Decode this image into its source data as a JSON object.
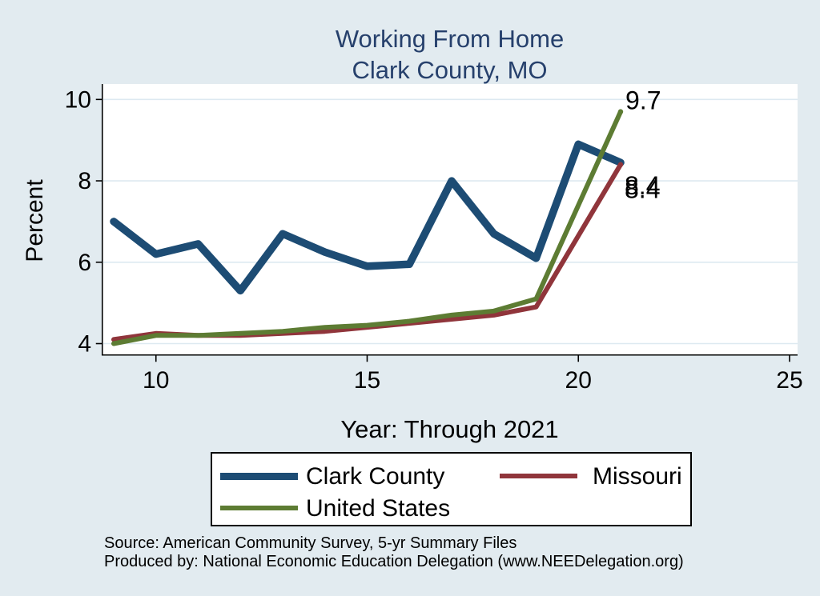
{
  "colors": {
    "background": "#e2ebf0",
    "plot_background": "#ffffff",
    "gridline": "#dde9f1",
    "axis": "#000000",
    "title_text": "#26406c",
    "clark_county": "#1d4c74",
    "missouri": "#90353b",
    "united_states": "#5d7c33"
  },
  "chart_data": {
    "type": "line",
    "title": "Working From Home",
    "subtitle": "Clark County, MO",
    "xlabel": "Year: Through 2021",
    "ylabel": "Percent",
    "xlim": [
      8.73,
      25.19
    ],
    "ylim": [
      3.72,
      10.38
    ],
    "xticks": [
      10,
      15,
      20,
      25
    ],
    "yticks": [
      10,
      8,
      6,
      4
    ],
    "grid": "horizontal gridlines on white plot area",
    "legend_position": "bottom",
    "x": [
      9,
      10,
      11,
      12,
      13,
      14,
      15,
      16,
      17,
      18,
      19,
      20,
      21
    ],
    "series": [
      {
        "name": "Clark County",
        "color_key": "clark_county",
        "line_width": 9.5,
        "values": [
          7.0,
          6.2,
          6.45,
          5.3,
          6.7,
          6.25,
          5.9,
          5.95,
          8.0,
          6.7,
          6.1,
          8.9,
          8.45
        ],
        "end_label": "8.4"
      },
      {
        "name": "Missouri",
        "color_key": "missouri",
        "line_width": 6,
        "values": [
          4.1,
          4.25,
          4.2,
          4.2,
          4.25,
          4.3,
          4.4,
          4.5,
          4.6,
          4.7,
          4.9,
          null,
          8.4
        ],
        "end_label": "8.4"
      },
      {
        "name": "United States",
        "color_key": "united_states",
        "line_width": 6,
        "values": [
          4.0,
          4.2,
          4.2,
          4.25,
          4.3,
          4.4,
          4.45,
          4.55,
          4.7,
          4.8,
          5.1,
          null,
          9.7
        ],
        "end_label": "9.7"
      }
    ]
  },
  "footer": {
    "source": "Source: American Community Survey, 5-yr Summary Files",
    "produced_by": "Produced by: National Economic Education Delegation (www.NEEDelegation.org)"
  }
}
